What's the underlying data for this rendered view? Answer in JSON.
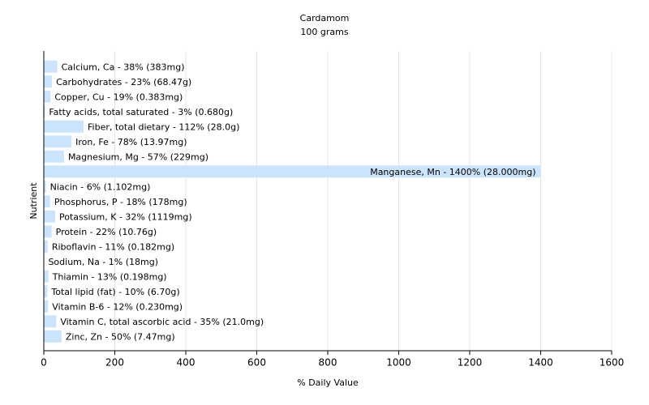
{
  "chart_data": {
    "type": "hbar",
    "title": "Cardamom",
    "subtitle": "100 grams",
    "x_label": "% Daily Value",
    "y_label": "Nutrient",
    "values": [
      38,
      23,
      19,
      3,
      112,
      78,
      57,
      1400,
      6,
      18,
      32,
      22,
      11,
      1,
      13,
      10,
      12,
      35,
      50
    ],
    "value_labels": [
      "Calcium, Ca - 38% (383mg)",
      "Carbohydrates - 23% (68.47g)",
      "Copper, Cu - 19% (0.383mg)",
      "Fatty acids, total saturated - 3% (0.680g)",
      "Fiber, total dietary - 112% (28.0g)",
      "Iron, Fe - 78% (13.97mg)",
      "Magnesium, Mg - 57% (229mg)",
      "Manganese, Mn - 1400% (28.000mg)",
      "Niacin - 6% (1.102mg)",
      "Phosphorus, P - 18% (178mg)",
      "Potassium, K - 32% (1119mg)",
      "Protein - 22% (10.76g)",
      "Riboflavin - 11% (0.182mg)",
      "Sodium, Na - 1% (18mg)",
      "Thiamin - 13% (0.198mg)",
      "Total lipid (fat) - 10% (6.70g)",
      "Vitamin B-6 - 12% (0.230mg)",
      "Vitamin C, total ascorbic acid - 35% (21.0mg)",
      "Zinc, Zn - 50% (7.47mg)"
    ],
    "color": "#cce4fb",
    "xlim": [
      0,
      1600
    ],
    "xticks": [
      0,
      200,
      400,
      600,
      800,
      1000,
      1200,
      1400,
      1600
    ],
    "grid": true
  }
}
